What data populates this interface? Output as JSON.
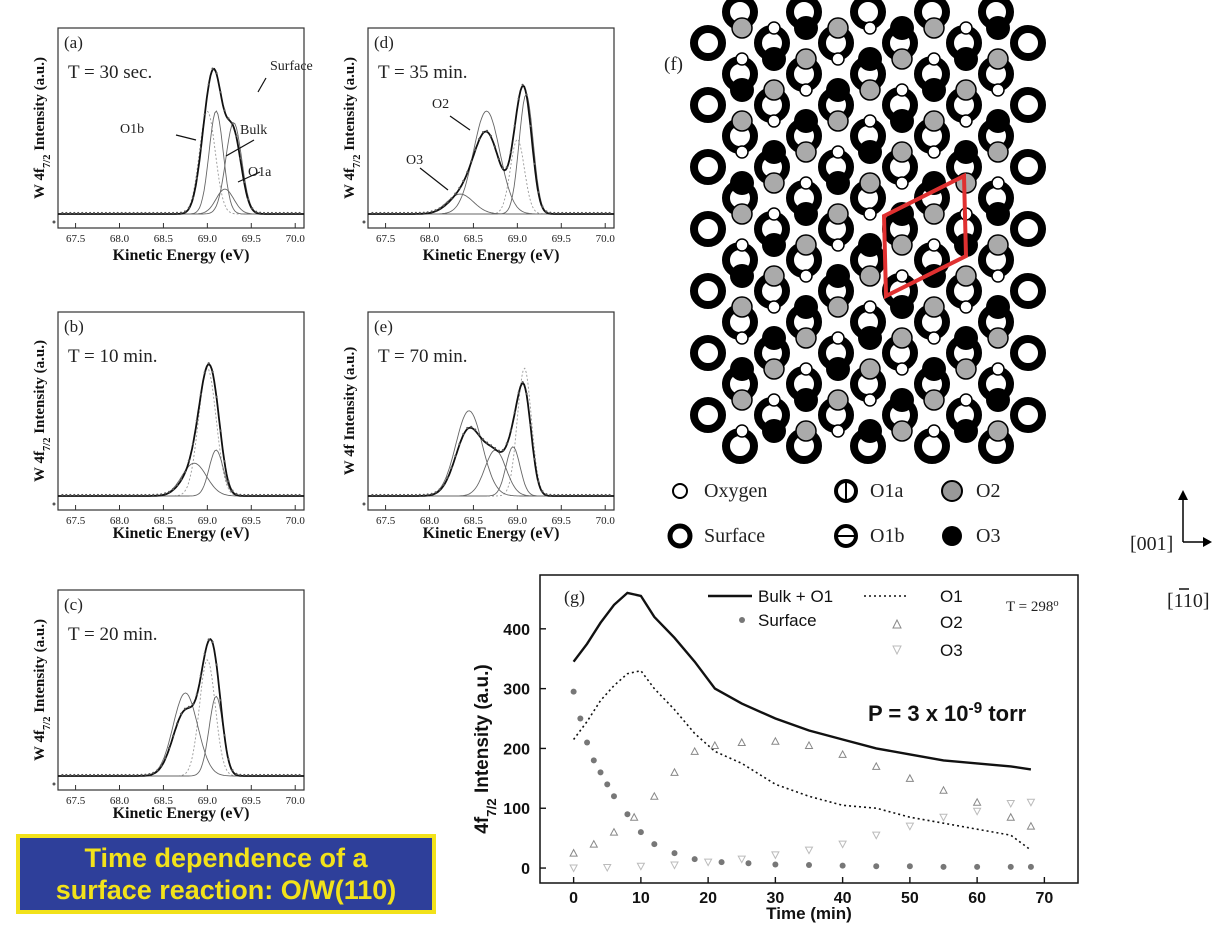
{
  "caption": {
    "line1": "Time dependence of a",
    "line2": "surface reaction: O/W(110)"
  },
  "colors": {
    "caption_bg": "#2e3f9a",
    "caption_text": "#f2e21a",
    "unit_cell": "#e03030",
    "surface_series": "#777777"
  },
  "chart_data": [
    {
      "id": "a",
      "type": "line",
      "panel_label": "(a)",
      "time_label": "T = 30 sec.",
      "xlabel": "Kinetic Energy (eV)",
      "ylabel": "W 4f",
      "ylabel_sub": "7/2",
      "ylabel_tail": " Intensity (a.u.)",
      "x_ticks": [
        "67.5",
        "68.0",
        "68.5",
        "69.0",
        "69.5",
        "70.0"
      ],
      "xlim": [
        67.3,
        70.1
      ],
      "annotations": [
        "Surface",
        "Bulk",
        "O1b",
        "O1a"
      ],
      "components": [
        {
          "center": 69.0,
          "amp": 0.62,
          "width": 0.09
        },
        {
          "center": 69.1,
          "amp": 0.62,
          "width": 0.08
        },
        {
          "center": 69.3,
          "amp": 0.55,
          "width": 0.09
        },
        {
          "center": 69.2,
          "amp": 0.15,
          "width": 0.1
        }
      ]
    },
    {
      "id": "b",
      "type": "line",
      "panel_label": "(b)",
      "time_label": "T = 10 min.",
      "xlabel": "Kinetic Energy (eV)",
      "ylabel": "W 4f",
      "ylabel_sub": "7/2",
      "ylabel_tail": " Intensity (a.u.)",
      "x_ticks": [
        "67.5",
        "68.0",
        "68.5",
        "69.0",
        "69.5",
        "70.0"
      ],
      "xlim": [
        67.3,
        70.1
      ],
      "annotations": [],
      "components": [
        {
          "center": 69.0,
          "amp": 0.78,
          "width": 0.1
        },
        {
          "center": 69.1,
          "amp": 0.28,
          "width": 0.08
        },
        {
          "center": 68.85,
          "amp": 0.2,
          "width": 0.14
        }
      ]
    },
    {
      "id": "c",
      "type": "line",
      "panel_label": "(c)",
      "time_label": "T = 20 min.",
      "xlabel": "Kinetic Energy (eV)",
      "ylabel": "W 4f",
      "ylabel_sub": "7/2",
      "ylabel_tail": " Intensity (a.u.)",
      "x_ticks": [
        "67.5",
        "68.0",
        "68.5",
        "69.0",
        "69.5",
        "70.0"
      ],
      "xlim": [
        67.3,
        70.1
      ],
      "annotations": [],
      "components": [
        {
          "center": 69.0,
          "amp": 0.7,
          "width": 0.09
        },
        {
          "center": 69.1,
          "amp": 0.48,
          "width": 0.08
        },
        {
          "center": 68.75,
          "amp": 0.5,
          "width": 0.14
        }
      ]
    },
    {
      "id": "d",
      "type": "line",
      "panel_label": "(d)",
      "time_label": "T = 35 min.",
      "xlabel": "Kinetic Energy (eV)",
      "ylabel": "W 4f",
      "ylabel_sub": "7/2",
      "ylabel_tail": " Intensity (a.u.)",
      "x_ticks": [
        "67.5",
        "68.0",
        "68.5",
        "69.0",
        "69.5",
        "70.0"
      ],
      "xlim": [
        67.3,
        70.1
      ],
      "annotations": [
        "O2",
        "O3"
      ],
      "components": [
        {
          "center": 69.0,
          "amp": 0.45,
          "width": 0.08
        },
        {
          "center": 69.1,
          "amp": 0.72,
          "width": 0.08
        },
        {
          "center": 68.65,
          "amp": 0.62,
          "width": 0.15
        },
        {
          "center": 68.35,
          "amp": 0.12,
          "width": 0.15
        }
      ]
    },
    {
      "id": "e",
      "type": "line",
      "panel_label": "(e)",
      "time_label": "T = 70 min.",
      "xlabel": "Kinetic Energy (eV)",
      "ylabel": "W 4f",
      "ylabel_sub": "",
      "ylabel_tail": " Intensity (a.u.)",
      "x_ticks": [
        "67.5",
        "68.0",
        "68.5",
        "69.0",
        "69.5",
        "70.0"
      ],
      "xlim": [
        67.3,
        70.1
      ],
      "annotations": [],
      "components": [
        {
          "center": 69.08,
          "amp": 0.78,
          "width": 0.08
        },
        {
          "center": 68.95,
          "amp": 0.3,
          "width": 0.08
        },
        {
          "center": 68.45,
          "amp": 0.52,
          "width": 0.15
        },
        {
          "center": 68.75,
          "amp": 0.28,
          "width": 0.12
        }
      ]
    },
    {
      "id": "g",
      "type": "scatter",
      "panel_label": "(g)",
      "annotation_temp": "T = 298",
      "annotation_temp_sup": "o",
      "annotation_pressure": "P = 3 x 10",
      "annotation_pressure_sup": "-9",
      "annotation_pressure_tail": " torr",
      "xlabel": "Time (min)",
      "ylabel": "4f",
      "ylabel_sub": "7/2",
      "ylabel_tail": " Intensity (a.u.)",
      "xlim": [
        -5,
        75
      ],
      "ylim": [
        -25,
        490
      ],
      "x_ticks": [
        "0",
        "10",
        "20",
        "30",
        "40",
        "50",
        "60",
        "70"
      ],
      "y_ticks": [
        "0",
        "100",
        "200",
        "300",
        "400"
      ],
      "legend_position": "top",
      "series": [
        {
          "name": "Bulk + O1",
          "style": "solid",
          "x": [
            0,
            2,
            4,
            6,
            8,
            10,
            12,
            15,
            18,
            21,
            25,
            30,
            35,
            40,
            45,
            50,
            55,
            60,
            65,
            68
          ],
          "y": [
            345,
            375,
            410,
            440,
            460,
            455,
            420,
            385,
            345,
            300,
            275,
            250,
            230,
            215,
            200,
            190,
            180,
            175,
            170,
            165
          ]
        },
        {
          "name": "O1",
          "style": "dotted",
          "x": [
            0,
            2,
            4,
            6,
            8,
            10,
            12,
            15,
            18,
            21,
            25,
            30,
            35,
            40,
            45,
            50,
            55,
            60,
            65,
            68
          ],
          "y": [
            215,
            245,
            280,
            305,
            325,
            330,
            300,
            265,
            225,
            195,
            175,
            140,
            120,
            105,
            100,
            85,
            75,
            65,
            55,
            30
          ]
        },
        {
          "name": "Surface",
          "style": "dots",
          "x": [
            0,
            1,
            2,
            3,
            4,
            5,
            6,
            8,
            10,
            12,
            15,
            18,
            22,
            26,
            30,
            35,
            40,
            45,
            50,
            55,
            60,
            65,
            68
          ],
          "y": [
            295,
            250,
            210,
            180,
            160,
            140,
            120,
            90,
            60,
            40,
            25,
            15,
            10,
            8,
            6,
            5,
            4,
            3,
            3,
            2,
            2,
            2,
            2
          ]
        },
        {
          "name": "O2",
          "style": "triangle-up",
          "x": [
            0,
            3,
            6,
            9,
            12,
            15,
            18,
            21,
            25,
            30,
            35,
            40,
            45,
            50,
            55,
            60,
            65,
            68
          ],
          "y": [
            25,
            40,
            60,
            85,
            120,
            160,
            195,
            205,
            210,
            212,
            205,
            190,
            170,
            150,
            130,
            110,
            85,
            70
          ]
        },
        {
          "name": "O3",
          "style": "triangle-down",
          "x": [
            0,
            5,
            10,
            15,
            20,
            25,
            30,
            35,
            40,
            45,
            50,
            55,
            60,
            65,
            68
          ],
          "y": [
            0,
            1,
            3,
            5,
            10,
            15,
            22,
            30,
            40,
            55,
            70,
            85,
            95,
            108,
            110
          ]
        }
      ]
    }
  ],
  "lattice": {
    "panel_label": "(f)",
    "legend": [
      {
        "label": "Oxygen",
        "symbol": "oxygen"
      },
      {
        "label": "O1a",
        "symbol": "o1a"
      },
      {
        "label": "O2",
        "symbol": "o2"
      },
      {
        "label": "Surface",
        "symbol": "surface"
      },
      {
        "label": "O1b",
        "symbol": "o1b"
      },
      {
        "label": "O3",
        "symbol": "o3"
      }
    ],
    "axis_up": "[001]",
    "axis_right": "[110]",
    "axis_right_bar": "1"
  }
}
